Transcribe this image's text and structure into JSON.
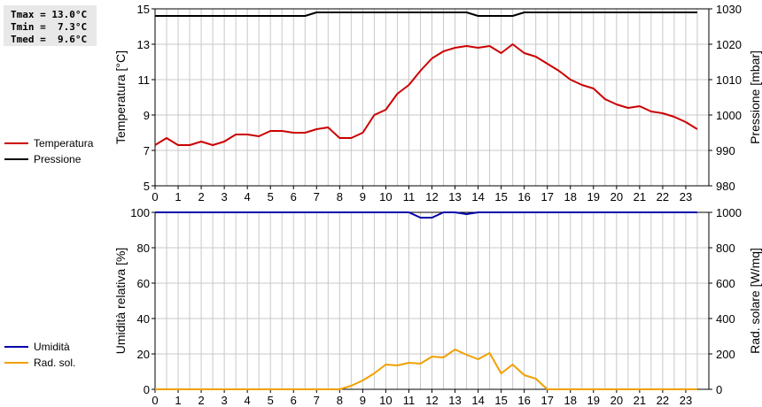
{
  "stats": {
    "tmax": "Tmax = 13.0°C",
    "tmin": "Tmin =  7.3°C",
    "tmed": "Tmed =  9.6°C"
  },
  "colors": {
    "temperatura": "#cc0000",
    "pressione": "#000000",
    "umidita": "#0000aa",
    "rad_sol": "#f0a000",
    "grid": "#c8c8c8"
  },
  "chart_data": [
    {
      "type": "line",
      "x": [
        0,
        0.5,
        1,
        1.5,
        2,
        2.5,
        3,
        3.5,
        4,
        4.5,
        5,
        5.5,
        6,
        6.5,
        7,
        7.5,
        8,
        8.5,
        9,
        9.5,
        10,
        10.5,
        11,
        11.5,
        12,
        12.5,
        13,
        13.5,
        14,
        14.5,
        15,
        15.5,
        16,
        16.5,
        17,
        17.5,
        18,
        18.5,
        19,
        19.5,
        20,
        20.5,
        21,
        21.5,
        22,
        22.5,
        23,
        23.5
      ],
      "xlim": [
        0,
        24
      ],
      "xticks": [
        "0",
        "1",
        "2",
        "3",
        "4",
        "5",
        "6",
        "7",
        "8",
        "9",
        "10",
        "11",
        "12",
        "13",
        "14",
        "15",
        "16",
        "17",
        "18",
        "19",
        "20",
        "21",
        "22",
        "23"
      ],
      "ylabel": "Temperatura [°C]",
      "ylim": [
        5,
        15
      ],
      "yticks": [
        "5",
        "7",
        "9",
        "11",
        "13",
        "15"
      ],
      "y2label": "Pressione [mbar]",
      "y2lim": [
        980,
        1030
      ],
      "y2ticks": [
        "980",
        "990",
        "1000",
        "1010",
        "1020",
        "1030"
      ],
      "grid": true,
      "legend_position": "left",
      "series": [
        {
          "name": "Temperatura",
          "axis": "left",
          "values": [
            7.3,
            7.7,
            7.3,
            7.3,
            7.5,
            7.3,
            7.5,
            7.9,
            7.9,
            7.8,
            8.1,
            8.1,
            8.0,
            8.0,
            8.2,
            8.3,
            7.7,
            7.7,
            8.0,
            9.0,
            9.3,
            10.2,
            10.7,
            11.5,
            12.2,
            12.6,
            12.8,
            12.9,
            12.8,
            12.9,
            12.5,
            13.0,
            12.5,
            12.3,
            11.9,
            11.5,
            11.0,
            10.7,
            10.5,
            9.9,
            9.6,
            9.4,
            9.5,
            9.2,
            9.1,
            8.9,
            8.6,
            8.2
          ]
        },
        {
          "name": "Pressione",
          "axis": "right",
          "values": [
            1028,
            1028,
            1028,
            1028,
            1028,
            1028,
            1028,
            1028,
            1028,
            1028,
            1028,
            1028,
            1028,
            1028,
            1029,
            1029,
            1029,
            1029,
            1029,
            1029,
            1029,
            1029,
            1029,
            1029,
            1029,
            1029,
            1029,
            1029,
            1028,
            1028,
            1028,
            1028,
            1029,
            1029,
            1029,
            1029,
            1029,
            1029,
            1029,
            1029,
            1029,
            1029,
            1029,
            1029,
            1029,
            1029,
            1029,
            1029
          ]
        }
      ]
    },
    {
      "type": "line",
      "x": [
        0,
        0.5,
        1,
        1.5,
        2,
        2.5,
        3,
        3.5,
        4,
        4.5,
        5,
        5.5,
        6,
        6.5,
        7,
        7.5,
        8,
        8.5,
        9,
        9.5,
        10,
        10.5,
        11,
        11.5,
        12,
        12.5,
        13,
        13.5,
        14,
        14.5,
        15,
        15.5,
        16,
        16.5,
        17,
        17.5,
        18,
        18.5,
        19,
        19.5,
        20,
        20.5,
        21,
        21.5,
        22,
        22.5,
        23,
        23.5
      ],
      "xlim": [
        0,
        24
      ],
      "xticks": [
        "0",
        "1",
        "2",
        "3",
        "4",
        "5",
        "6",
        "7",
        "8",
        "9",
        "10",
        "11",
        "12",
        "13",
        "14",
        "15",
        "16",
        "17",
        "18",
        "19",
        "20",
        "21",
        "22",
        "23"
      ],
      "ylabel": "Umidità relativa [%]",
      "ylim": [
        0,
        100
      ],
      "yticks": [
        "0",
        "20",
        "40",
        "60",
        "80",
        "100"
      ],
      "y2label": "Rad. solare [W/mq]",
      "y2lim": [
        0,
        1000
      ],
      "y2ticks": [
        "0",
        "200",
        "400",
        "600",
        "800",
        "1000"
      ],
      "grid": true,
      "legend_position": "left",
      "series": [
        {
          "name": "Umidità",
          "axis": "left",
          "values": [
            100,
            100,
            100,
            100,
            100,
            100,
            100,
            100,
            100,
            100,
            100,
            100,
            100,
            100,
            100,
            100,
            100,
            100,
            100,
            100,
            100,
            100,
            100,
            97,
            97,
            100,
            100,
            99,
            100,
            100,
            100,
            100,
            100,
            100,
            100,
            100,
            100,
            100,
            100,
            100,
            100,
            100,
            100,
            100,
            100,
            100,
            100,
            100
          ]
        },
        {
          "name": "Rad. sol.",
          "axis": "right",
          "values": [
            0,
            0,
            0,
            0,
            0,
            0,
            0,
            0,
            0,
            0,
            0,
            0,
            0,
            0,
            0,
            0,
            0,
            20,
            50,
            90,
            140,
            135,
            150,
            145,
            185,
            180,
            225,
            195,
            170,
            205,
            90,
            140,
            80,
            60,
            0,
            0,
            0,
            0,
            0,
            0,
            0,
            0,
            0,
            0,
            0,
            0,
            0,
            0
          ]
        }
      ]
    }
  ]
}
